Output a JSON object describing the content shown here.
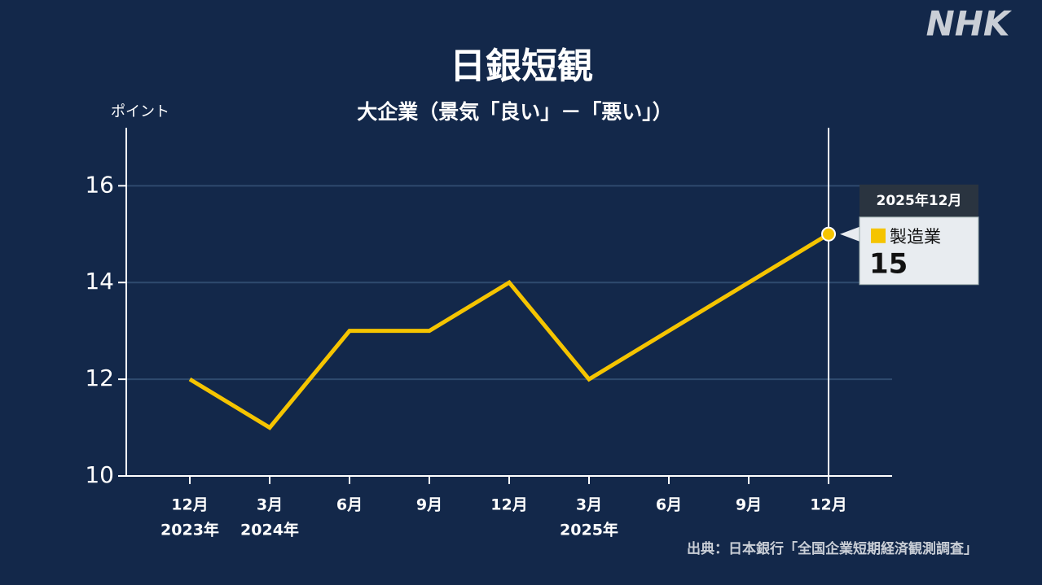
{
  "chart_data": {
    "type": "line",
    "title": "日銀短観",
    "subtitle": "大企業（景気「良い」－「悪い」）",
    "y_label": "ポイント",
    "logo": "NHK",
    "source": "出典：日本銀行「全国企業短期経済観測調査」",
    "categories": [
      "12月",
      "3月",
      "6月",
      "9月",
      "12月",
      "3月",
      "6月",
      "9月",
      "12月"
    ],
    "year_labels": [
      "2023年",
      "2024年",
      null,
      null,
      null,
      "2025年",
      null,
      null,
      null
    ],
    "series": [
      {
        "name": "製造業",
        "color": "#f5c400",
        "values": [
          12,
          11,
          13,
          13,
          14,
          12,
          13,
          14,
          15
        ]
      }
    ],
    "ylim": [
      10,
      17.2
    ],
    "yticks": [
      10,
      12,
      14,
      16
    ],
    "grid": true,
    "tooltip_title": "2025年12月"
  }
}
